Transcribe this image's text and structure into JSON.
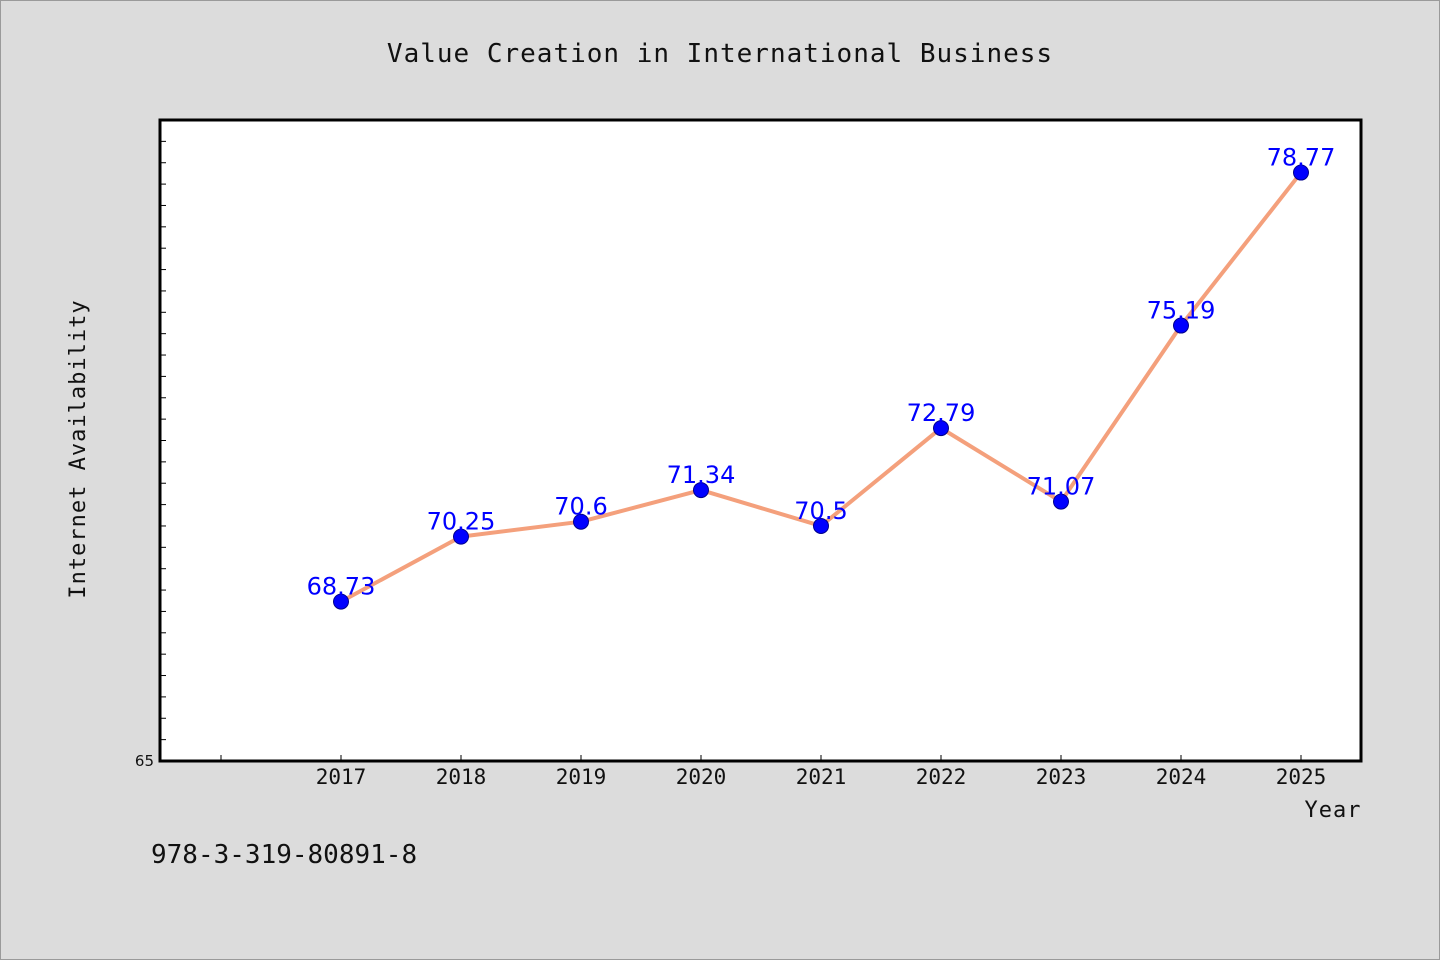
{
  "footnote": "978-3-319-80891-8",
  "chart_data": {
    "type": "line",
    "title": "Value Creation in International Business",
    "xlabel": "Year",
    "ylabel": "Internet Availability",
    "categories": [
      "2017",
      "2018",
      "2019",
      "2020",
      "2021",
      "2022",
      "2023",
      "2024",
      "2025"
    ],
    "series": [
      {
        "values": [
          68.73,
          70.25,
          70.6,
          71.34,
          70.5,
          72.79,
          71.07,
          75.19,
          78.77
        ],
        "data_labels": [
          "68.73",
          "70.25",
          "70.6",
          "71.34",
          "70.5",
          "72.79",
          "71.07",
          "75.19",
          "78.77"
        ],
        "line_color": "#f4a07c",
        "marker_color": "#0000ff"
      }
    ],
    "ylim": [
      65,
      80
    ],
    "y_tick_labels": [
      "65"
    ],
    "grid": false,
    "legend": "none"
  }
}
